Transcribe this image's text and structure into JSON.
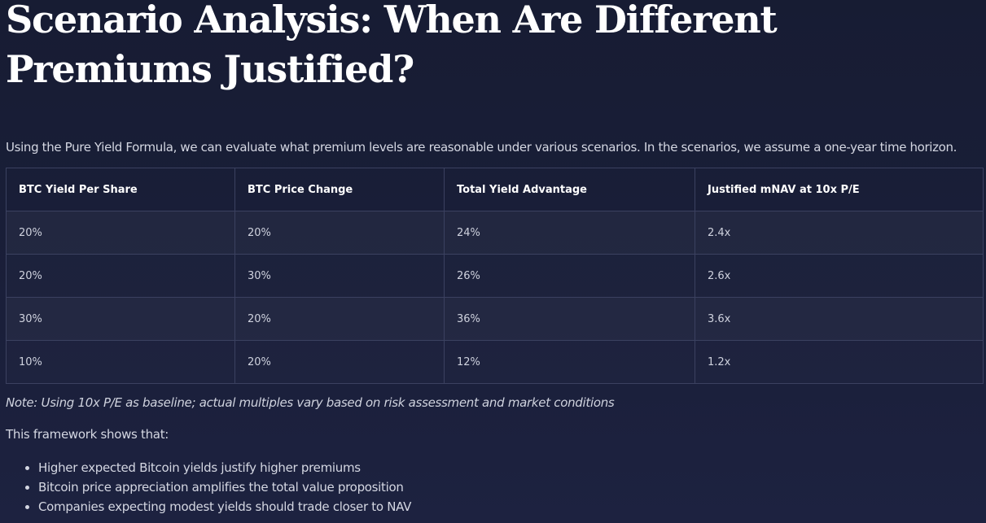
{
  "header": {
    "title": "Scenario Analysis: When Are Different Premiums Justified?"
  },
  "intro": "Using the Pure Yield Formula, we can evaluate what premium levels are reasonable under various scenarios. In the scenarios, we assume a one-year time horizon.",
  "table": {
    "columns": [
      "BTC Yield Per Share",
      "BTC Price Change",
      "Total Yield Advantage",
      "Justified mNAV at 10x P/E"
    ],
    "rows": [
      [
        "20%",
        "20%",
        "24%",
        "2.4x"
      ],
      [
        "20%",
        "30%",
        "26%",
        "2.6x"
      ],
      [
        "30%",
        "20%",
        "36%",
        "3.6x"
      ],
      [
        "10%",
        "20%",
        "12%",
        "1.2x"
      ]
    ]
  },
  "note": "Note: Using 10x P/E as baseline; actual multiples vary based on risk assessment and market conditions",
  "lead": "This framework shows that:",
  "points": [
    "Higher expected Bitcoin yields justify higher premiums",
    "Bitcoin price appreciation amplifies the total value proposition",
    "Companies expecting modest yields should trade closer to NAV"
  ]
}
